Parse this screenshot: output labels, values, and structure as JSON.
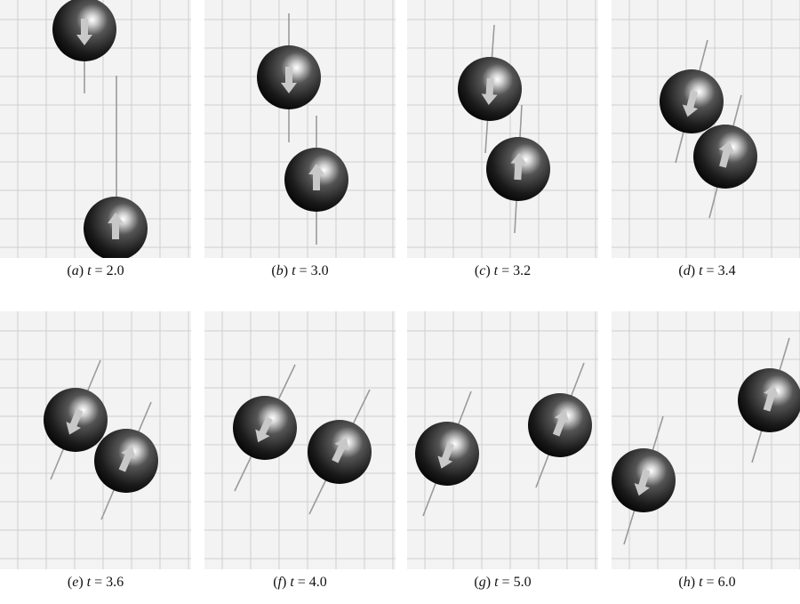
{
  "panels": [
    {
      "letter": "a",
      "t": "2.0",
      "caption_open": "(",
      "caption_close": ")",
      "eq": "=",
      "balls": [
        {
          "x": 95,
          "y": 33,
          "dir": "down"
        },
        {
          "x": 130,
          "y": 257,
          "dir": "up"
        }
      ],
      "lines": [
        [
          95,
          105,
          95,
          3
        ],
        [
          131,
          85,
          131,
          290
        ]
      ]
    },
    {
      "letter": "b",
      "t": "3.0",
      "caption_open": "(",
      "caption_close": ")",
      "eq": "=",
      "balls": [
        {
          "x": 95,
          "y": 87,
          "dir": "down"
        },
        {
          "x": 126,
          "y": 202,
          "dir": "up"
        }
      ],
      "lines": [
        [
          95,
          15,
          95,
          160
        ],
        [
          126,
          130,
          126,
          275
        ]
      ]
    },
    {
      "letter": "c",
      "t": "3.2",
      "caption_open": "(",
      "caption_close": ")",
      "eq": "=",
      "balls": [
        {
          "x": 93,
          "y": 100,
          "dir": "down"
        },
        {
          "x": 125,
          "y": 190,
          "dir": "up"
        }
      ],
      "lines": [
        [
          98,
          28,
          88,
          172
        ],
        [
          129,
          118,
          121,
          262
        ]
      ]
    },
    {
      "letter": "d",
      "t": "3.4",
      "caption_open": "(",
      "caption_close": ")",
      "eq": "=",
      "balls": [
        {
          "x": 90,
          "y": 114,
          "dir": "down"
        },
        {
          "x": 128,
          "y": 176,
          "dir": "up"
        }
      ],
      "lines": [
        [
          108,
          45,
          72,
          183
        ],
        [
          146,
          107,
          110,
          245
        ]
      ]
    },
    {
      "letter": "e",
      "t": "3.6",
      "caption_open": "(",
      "caption_close": ")",
      "eq": "=",
      "balls": [
        {
          "x": 85,
          "y": 122,
          "dir": "down"
        },
        {
          "x": 142,
          "y": 168,
          "dir": "up"
        }
      ],
      "lines": [
        [
          113,
          55,
          57,
          189
        ],
        [
          170,
          102,
          114,
          234
        ]
      ]
    },
    {
      "letter": "f",
      "t": "4.0",
      "caption_open": "(",
      "caption_close": ")",
      "eq": "=",
      "balls": [
        {
          "x": 68,
          "y": 131,
          "dir": "down"
        },
        {
          "x": 152,
          "y": 158,
          "dir": "up"
        }
      ],
      "lines": [
        [
          102,
          60,
          34,
          202
        ],
        [
          186,
          88,
          118,
          228
        ]
      ]
    },
    {
      "letter": "g",
      "t": "5.0",
      "caption_open": "(",
      "caption_close": ")",
      "eq": "=",
      "balls": [
        {
          "x": 45,
          "y": 160,
          "dir": "down"
        },
        {
          "x": 172,
          "y": 128,
          "dir": "up"
        }
      ],
      "lines": [
        [
          72,
          90,
          18,
          230
        ],
        [
          199,
          58,
          145,
          198
        ]
      ]
    },
    {
      "letter": "h",
      "t": "6.0",
      "caption_open": "(",
      "caption_close": ")",
      "eq": "=",
      "balls": [
        {
          "x": 36,
          "y": 190,
          "dir": "down"
        },
        {
          "x": 178,
          "y": 100,
          "dir": "up"
        }
      ],
      "lines": [
        [
          58,
          118,
          14,
          262
        ],
        [
          200,
          30,
          158,
          170
        ]
      ]
    }
  ],
  "colors": {
    "grid_bg": "#f3f3f3",
    "grid_line": "#cfcfcf",
    "arrow": "#c8c8c8",
    "track": "#9a9a9a"
  }
}
